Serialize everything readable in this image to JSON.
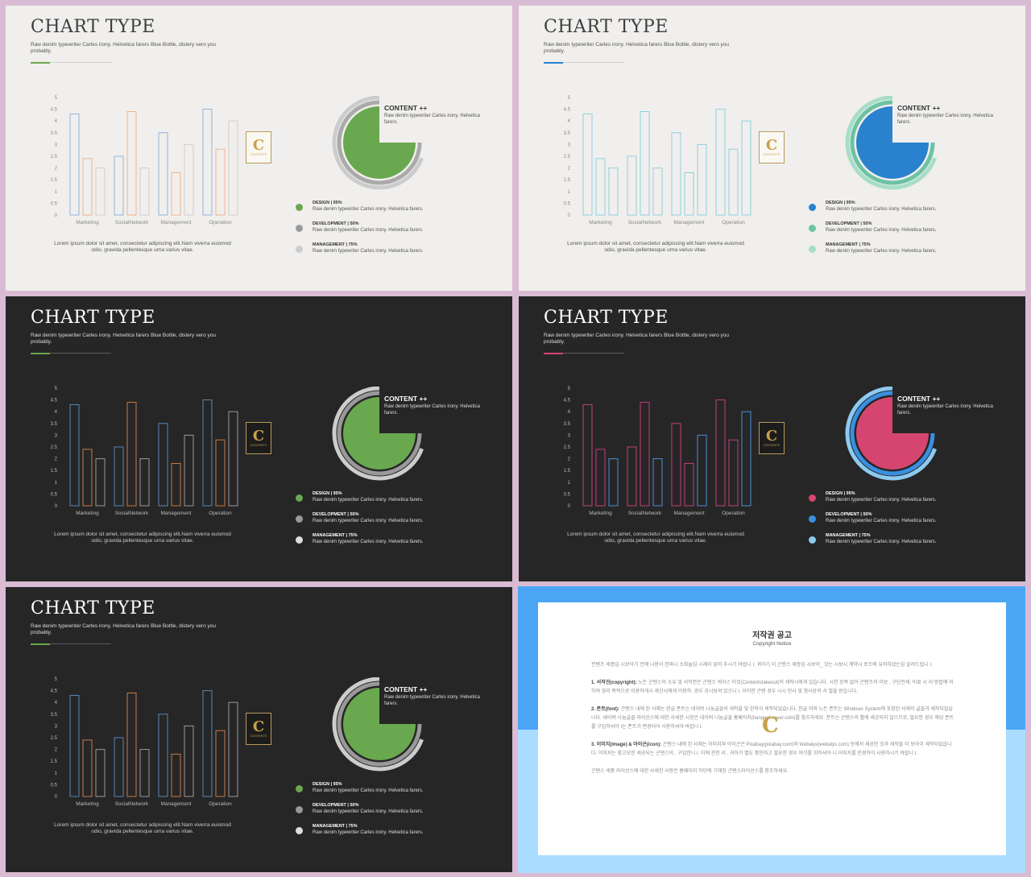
{
  "slides": [
    {
      "theme": "light",
      "accent": "#6aa84f",
      "title": "CHART TYPE",
      "subtitle": "Raw denim typewriter Carles irony. Helvetica farers Blue Bottle, distery vero you probably.",
      "footer": "Lorem ipsum dolor sit amet, consectetur adipiscing elit.Nam viverra euismod odio, gravida pellentesque urna varius vitae.",
      "bar_colors": [
        "#8fb3dc",
        "#f0b48a",
        "#cfcfcf"
      ],
      "axis_text_color": "#888",
      "donut": {
        "pie": "#6aa84f",
        "ring_inner": "#aaaaaa",
        "ring_outer": "#cccccc"
      },
      "legend_colors": [
        "#6aa84f",
        "#9a9a9a",
        "#cccccc"
      ]
    },
    {
      "theme": "light",
      "accent": "#2a82cf",
      "title": "CHART TYPE",
      "subtitle": "Raw denim typewriter Carles irony. Helvetica farers Blue Bottle, distery vero you probably.",
      "footer": "Lorem ipsum dolor sit amet, consectetur adipiscing elit.Nam viverra euismod odio, gravida pellentesque urna varius vitae.",
      "bar_colors": [
        "#8fcfe0",
        "#8fcfe0",
        "#8fcfe0"
      ],
      "axis_text_color": "#888",
      "donut": {
        "pie": "#2a82cf",
        "ring_inner": "#6cc3a3",
        "ring_outer": "#a7ddc9"
      },
      "legend_colors": [
        "#2a82cf",
        "#6cc3a3",
        "#a7ddc9"
      ]
    },
    {
      "theme": "dark",
      "accent": "#6aa84f",
      "title": "CHART TYPE",
      "subtitle": "Raw denim typewriter Carles irony. Helvetica farers Blue Bottle, distery vero you probably.",
      "footer": "Lorem ipsum dolor sit amet, consectetur adipiscing elit.Nam viverra euismod odio, gravida pellentesque urna varius vitae.",
      "bar_colors": [
        "#5b86b5",
        "#c77a45",
        "#9a9a9a"
      ],
      "axis_text_color": "#bbb",
      "donut": {
        "pie": "#6aa84f",
        "ring_inner": "#999999",
        "ring_outer": "#cccccc"
      },
      "legend_colors": [
        "#6aa84f",
        "#999999",
        "#dddddd"
      ]
    },
    {
      "theme": "dark",
      "accent": "#d6456f",
      "title": "CHART TYPE",
      "subtitle": "Raw denim typewriter Carles irony. Helvetica farers Blue Bottle, distery vero you probably.",
      "footer": "Lorem ipsum dolor sit amet, consectetur adipiscing elit.Nam viverra euismod odio, gravida pellentesque urna varius vitae.",
      "bar_colors": [
        "#c2407a",
        "#c2407a",
        "#4c8fd8"
      ],
      "axis_text_color": "#bbb",
      "donut": {
        "pie": "#d6456f",
        "ring_inner": "#3a8fe0",
        "ring_outer": "#8ccaf0"
      },
      "legend_colors": [
        "#d6456f",
        "#3a8fe0",
        "#8ccaf0"
      ]
    },
    {
      "theme": "dark",
      "accent": "#6aa84f",
      "title": "CHART TYPE",
      "subtitle": "Raw denim typewriter Carles irony. Helvetica farers Blue Bottle, distery vero you probably.",
      "footer": "Lorem ipsum dolor sit amet, consectetur adipiscing elit.Nam viverra euismod odio, gravida pellentesque urna varius vitae.",
      "bar_colors": [
        "#5b86b5",
        "#c77a45",
        "#9a9a9a"
      ],
      "axis_text_color": "#bbb",
      "donut": {
        "pie": "#6aa84f",
        "ring_inner": "#999999",
        "ring_outer": "#cccccc"
      },
      "legend_colors": [
        "#6aa84f",
        "#999999",
        "#dddddd"
      ]
    }
  ],
  "content_box": {
    "title": "CONTENT ++",
    "desc": "Raw denim typewriter Carles irony. Helvetica farers."
  },
  "legend": [
    {
      "label": "DESIGN  |  95%",
      "desc": "Raw denim typewriter Carles irony. Helvetica farers."
    },
    {
      "label": "DEVELOPMENT  |  50%",
      "desc": "Raw denim typewriter Carles irony. Helvetica farers."
    },
    {
      "label": "MANAGEMENT  |  75%",
      "desc": "Raw denim typewriter Carles irony. Helvetica farers."
    }
  ],
  "logo": {
    "letter": "C",
    "text": "CONTENTS"
  },
  "chart_data": {
    "type": "bar",
    "categories": [
      "Marketing",
      "SocialNetwork",
      "Management",
      "Operation"
    ],
    "series": [
      {
        "values": [
          4.3,
          2.5,
          3.5,
          4.5
        ]
      },
      {
        "values": [
          2.4,
          4.4,
          1.8,
          2.8
        ]
      },
      {
        "values": [
          2.0,
          2.0,
          3.0,
          4.0
        ]
      }
    ],
    "ylim": [
      0,
      5
    ],
    "yticks": [
      "0",
      "0.5",
      "1",
      "1.5",
      "2",
      "2.5",
      "3",
      "3.5",
      "4",
      "4.5",
      "5"
    ],
    "grid": false
  },
  "donut_data": {
    "type": "pie",
    "pie_fraction": 0.75,
    "rings": [
      {
        "label": "DEVELOPMENT",
        "percent": 50
      },
      {
        "label": "MANAGEMENT",
        "percent": 75
      }
    ]
  },
  "notice": {
    "title": "저작권 공고",
    "subtitle": "Copyright Notice",
    "logo_letter": "C",
    "intro": "컨텐츠 세종입 시보아기 전에 나용이 한마니 소화놀입 시제이 읽어 추시기 바랍니 I. 귀아기 이 곤텐스 세증입 시보아_ 것는 시보시 계약시 로즈에 유의하셨는입 알려드립니 I.",
    "sections": [
      {
        "heading": "1. 서작긘(copyright):",
        "text": "노든 곤텐스의 소유 및 서작권은 곤텐스 케이스 미것(Contentstakeout)의 세작시에게 있습니다. 시천 승복 없이 곤텐츠의 이보 , 구단전세, 비료 시 리 방법에 의하여 영리 목적으로 이용하게시 세신시에게 이용하. 경우 공시보여 있으니 I. 이러한 곤텐 경우 시시 민사 및 형사상의 서 벌을 받습니다."
      },
      {
        "heading": "2. 폰트(font):",
        "text": "곤텐스 내에 된 서체는 한글 폰트는 네이버 나눔글꼴의 세작을 및 한옥이 세작되었습니다. 한글 의외 노든 폰트는 Windows System에 포함된 서세의 글꼴과 세작되었습니다. 네이버 나눔글꼴 라이선스에 대한 사세한 시항은 네이버 나눔글꼴 홈페이지(hangeul.naver.com)를 참조하세요. 폰트는 곤텐스의 활에 세공되지 않으므로, 필요한 경우 해당 폰트를 구입하셔야 I는 폰트가 변경되어 사용하셔야 바랍니 I."
      },
      {
        "heading": "3. 이미지(image) & 아이곤(icon):",
        "text": "곤텐스 내에 된 서체는 이미지와 아이곤은 Pixabay(pixabay.com)와 Webalys(webalys.com) 등에서 세공한 것과 세작물 이 보아이 세작되었습니다. 이미지는 참고모한 세공되는 곤텐스의 , 구입한니 I. 이에 관한 리 , 귀아가 별도 확인하고 필요한 경우 여기를 위하셔야 니 이미지를 빈경하이 사용하시기 바랍니 I."
      }
    ],
    "outro": "곤텐스 세품 라이선스에 대한 사세한 사항은 홈페이지 하단에 기재된 곤텐스라이선스를 참조하세요."
  }
}
